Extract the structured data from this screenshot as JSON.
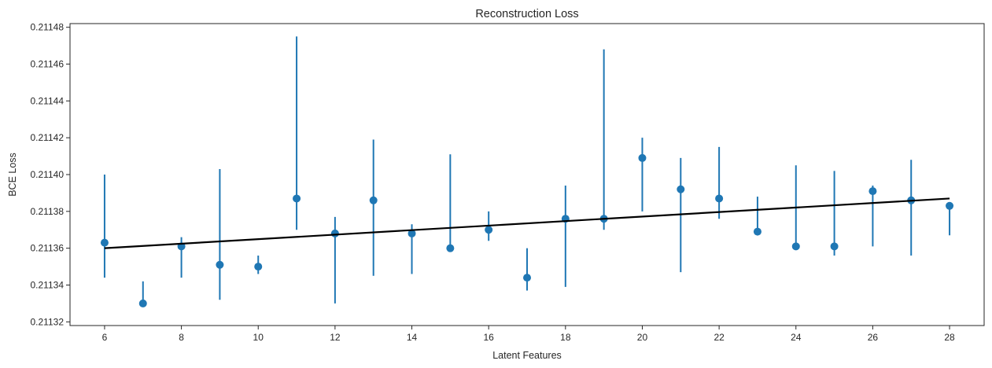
{
  "chart_data": {
    "type": "scatter",
    "title": "Reconstruction Loss",
    "xlabel": "Latent Features",
    "ylabel": "BCE Loss",
    "xlim": [
      5.1,
      28.9
    ],
    "ylim": [
      0.211318,
      0.211482
    ],
    "xticks": [
      6,
      8,
      10,
      12,
      14,
      16,
      18,
      20,
      22,
      24,
      26,
      28
    ],
    "xtick_labels": [
      "6",
      "8",
      "10",
      "12",
      "14",
      "16",
      "18",
      "20",
      "22",
      "24",
      "26",
      "28"
    ],
    "yticks": [
      0.21132,
      0.21134,
      0.21136,
      0.21138,
      0.2114,
      0.21142,
      0.21144,
      0.21146,
      0.21148
    ],
    "ytick_labels": [
      "0.21132",
      "0.21134",
      "0.21136",
      "0.21138",
      "0.21140",
      "0.21142",
      "0.21144",
      "0.21146",
      "0.21148"
    ],
    "grid": false,
    "point_color": "#1f77b4",
    "trend_color": "#000000",
    "points": [
      {
        "x": 6,
        "y": 0.211363,
        "ylow": 0.211344,
        "yhigh": 0.2114
      },
      {
        "x": 7,
        "y": 0.21133,
        "ylow": 0.211328,
        "yhigh": 0.211342
      },
      {
        "x": 8,
        "y": 0.211361,
        "ylow": 0.211344,
        "yhigh": 0.211366
      },
      {
        "x": 9,
        "y": 0.211351,
        "ylow": 0.211332,
        "yhigh": 0.211403
      },
      {
        "x": 10,
        "y": 0.21135,
        "ylow": 0.211346,
        "yhigh": 0.211356
      },
      {
        "x": 11,
        "y": 0.211387,
        "ylow": 0.21137,
        "yhigh": 0.211475
      },
      {
        "x": 12,
        "y": 0.211368,
        "ylow": 0.21133,
        "yhigh": 0.211377
      },
      {
        "x": 13,
        "y": 0.211386,
        "ylow": 0.211345,
        "yhigh": 0.211419
      },
      {
        "x": 14,
        "y": 0.211368,
        "ylow": 0.211346,
        "yhigh": 0.211373
      },
      {
        "x": 15,
        "y": 0.21136,
        "ylow": 0.21136,
        "yhigh": 0.211411
      },
      {
        "x": 16,
        "y": 0.21137,
        "ylow": 0.211364,
        "yhigh": 0.21138
      },
      {
        "x": 17,
        "y": 0.211344,
        "ylow": 0.211337,
        "yhigh": 0.21136
      },
      {
        "x": 18,
        "y": 0.211376,
        "ylow": 0.211339,
        "yhigh": 0.211394
      },
      {
        "x": 19,
        "y": 0.211376,
        "ylow": 0.21137,
        "yhigh": 0.211468
      },
      {
        "x": 20,
        "y": 0.211409,
        "ylow": 0.21138,
        "yhigh": 0.21142
      },
      {
        "x": 21,
        "y": 0.211392,
        "ylow": 0.211347,
        "yhigh": 0.211409
      },
      {
        "x": 22,
        "y": 0.211387,
        "ylow": 0.211376,
        "yhigh": 0.211415
      },
      {
        "x": 23,
        "y": 0.211369,
        "ylow": 0.211367,
        "yhigh": 0.211388
      },
      {
        "x": 24,
        "y": 0.211361,
        "ylow": 0.211361,
        "yhigh": 0.211405
      },
      {
        "x": 25,
        "y": 0.211361,
        "ylow": 0.211356,
        "yhigh": 0.211402
      },
      {
        "x": 26,
        "y": 0.211391,
        "ylow": 0.211361,
        "yhigh": 0.211394
      },
      {
        "x": 27,
        "y": 0.211386,
        "ylow": 0.211356,
        "yhigh": 0.211408
      },
      {
        "x": 28,
        "y": 0.211383,
        "ylow": 0.211367,
        "yhigh": 0.211385
      }
    ],
    "trend_line": {
      "x": [
        6,
        28
      ],
      "y": [
        0.21136,
        0.211387
      ]
    }
  }
}
